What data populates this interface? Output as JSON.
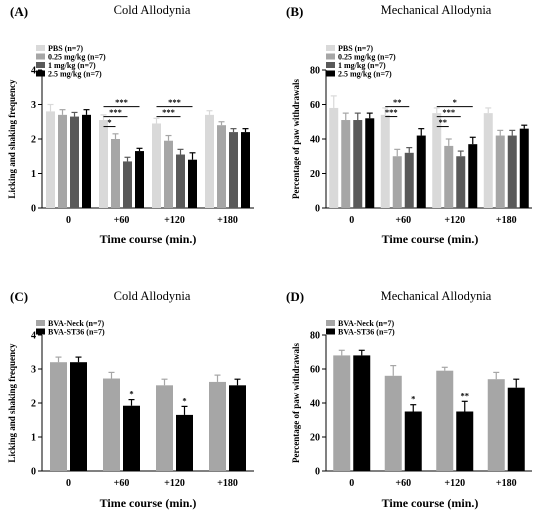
{
  "chart_data": [
    {
      "type": "bar",
      "panel_label": "(A)",
      "title": "Cold Allodynia",
      "xlabel": "Time course (min.)",
      "ylabel": "Licking and shaking frequency",
      "ylim": [
        0,
        4
      ],
      "yticks": [
        "0",
        "1",
        "2",
        "3",
        "4"
      ],
      "categories": [
        "0",
        "+60",
        "+120",
        "+180"
      ],
      "series": [
        {
          "name": "PBS (n=7)",
          "color": "#d9d9d9",
          "values": [
            2.8,
            2.55,
            2.45,
            2.7
          ],
          "errors": [
            0.2,
            0.15,
            0.15,
            0.12
          ]
        },
        {
          "name": "0.25 mg/kg (n=7)",
          "color": "#a6a6a6",
          "values": [
            2.7,
            2.0,
            1.95,
            2.4
          ],
          "errors": [
            0.15,
            0.15,
            0.15,
            0.1
          ]
        },
        {
          "name": "1 mg/kg (n=7)",
          "color": "#595959",
          "values": [
            2.65,
            1.35,
            1.55,
            2.2
          ],
          "errors": [
            0.12,
            0.12,
            0.15,
            0.1
          ]
        },
        {
          "name": "2.5 mg/kg (n=7)",
          "color": "#000000",
          "values": [
            2.7,
            1.65,
            1.4,
            2.2
          ],
          "errors": [
            0.15,
            0.08,
            0.2,
            0.1
          ]
        }
      ],
      "significance": [
        {
          "group": 1,
          "from": 0,
          "to": 3,
          "label": "***"
        },
        {
          "group": 1,
          "from": 0,
          "to": 2,
          "label": "***"
        },
        {
          "group": 1,
          "from": 0,
          "to": 1,
          "label": "*"
        },
        {
          "group": 2,
          "from": 0,
          "to": 3,
          "label": "***"
        },
        {
          "group": 2,
          "from": 0,
          "to": 2,
          "label": "***"
        }
      ]
    },
    {
      "type": "bar",
      "panel_label": "(B)",
      "title": "Mechanical Allodynia",
      "xlabel": "Time course (min.)",
      "ylabel": "Percentage of paw withdrawals",
      "ylim": [
        0,
        80
      ],
      "yticks": [
        "0",
        "20",
        "40",
        "60",
        "80"
      ],
      "categories": [
        "0",
        "+60",
        "+120",
        "+180"
      ],
      "series": [
        {
          "name": "PBS (n=7)",
          "color": "#d9d9d9",
          "values": [
            58,
            54,
            55,
            55
          ],
          "errors": [
            7,
            4,
            3,
            3
          ]
        },
        {
          "name": "0.25 mg/kg (n=7)",
          "color": "#a6a6a6",
          "values": [
            51,
            30,
            36,
            42
          ],
          "errors": [
            4,
            4,
            4,
            3
          ]
        },
        {
          "name": "1 mg/kg (n=7)",
          "color": "#595959",
          "values": [
            51,
            32,
            30,
            42
          ],
          "errors": [
            4,
            3,
            3,
            3
          ]
        },
        {
          "name": "2.5 mg/kg (n=7)",
          "color": "#000000",
          "values": [
            52,
            42,
            37,
            46
          ],
          "errors": [
            3,
            4,
            4,
            2
          ]
        }
      ],
      "significance": [
        {
          "group": 1,
          "from": 0,
          "to": 2,
          "label": "**"
        },
        {
          "group": 1,
          "from": 0,
          "to": 1,
          "label": "***"
        },
        {
          "group": 2,
          "from": 0,
          "to": 3,
          "label": "*"
        },
        {
          "group": 2,
          "from": 0,
          "to": 2,
          "label": "***"
        },
        {
          "group": 2,
          "from": 0,
          "to": 1,
          "label": "**"
        }
      ]
    },
    {
      "type": "bar",
      "panel_label": "(C)",
      "title": "Cold Allodynia",
      "xlabel": "Time course (min.)",
      "ylabel": "Licking and shaking frequency",
      "ylim": [
        0,
        4
      ],
      "yticks": [
        "0",
        "1",
        "2",
        "3",
        "4"
      ],
      "categories": [
        "0",
        "+60",
        "+120",
        "+180"
      ],
      "series": [
        {
          "name": "BVA-Neck (n=7)",
          "color": "#a6a6a6",
          "values": [
            3.2,
            2.72,
            2.52,
            2.62
          ],
          "errors": [
            0.15,
            0.18,
            0.18,
            0.2
          ]
        },
        {
          "name": "BVA-ST36 (n=7)",
          "color": "#000000",
          "values": [
            3.2,
            1.92,
            1.65,
            2.52
          ],
          "errors": [
            0.15,
            0.18,
            0.25,
            0.18
          ]
        }
      ],
      "significance_marks": [
        {
          "group": 1,
          "series": 1,
          "label": "*"
        },
        {
          "group": 2,
          "series": 1,
          "label": "*"
        }
      ]
    },
    {
      "type": "bar",
      "panel_label": "(D)",
      "title": "Mechanical Allodynia",
      "xlabel": "Time course (min.)",
      "ylabel": "Percentage of paw withdrawals",
      "ylim": [
        0,
        80
      ],
      "yticks": [
        "0",
        "20",
        "40",
        "60",
        "80"
      ],
      "categories": [
        "0",
        "+60",
        "+120",
        "+180"
      ],
      "series": [
        {
          "name": "BVA-Neck (n=7)",
          "color": "#a6a6a6",
          "values": [
            68,
            56,
            59,
            54
          ],
          "errors": [
            3,
            6,
            2,
            4
          ]
        },
        {
          "name": "BVA-ST36 (n=7)",
          "color": "#000000",
          "values": [
            68,
            35,
            35,
            49
          ],
          "errors": [
            3,
            4,
            6,
            5
          ]
        }
      ],
      "significance_marks": [
        {
          "group": 1,
          "series": 1,
          "label": "*"
        },
        {
          "group": 2,
          "series": 1,
          "label": "**"
        }
      ]
    }
  ]
}
